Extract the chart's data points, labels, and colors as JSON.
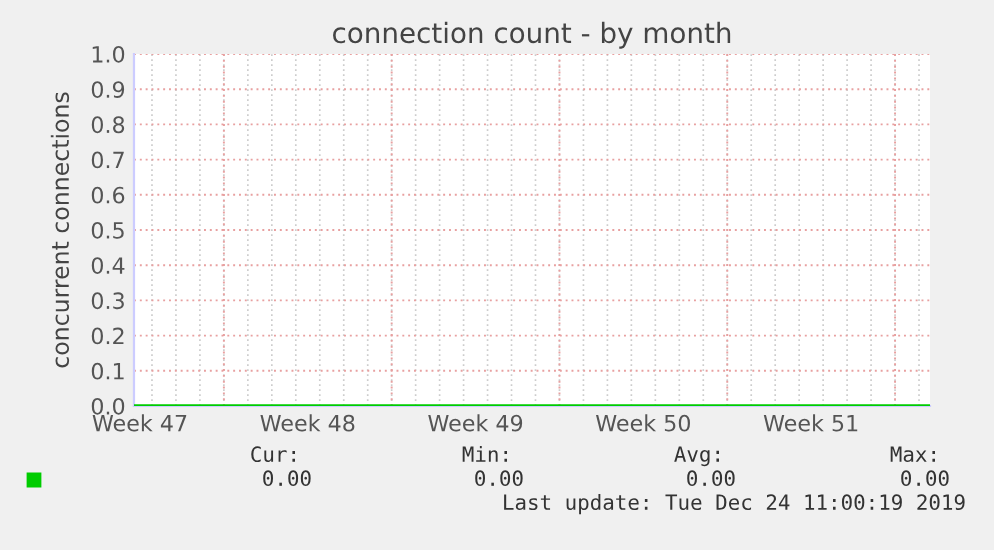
{
  "chart_data": {
    "type": "line",
    "title": "connection count - by month",
    "ylabel": "concurrent connections",
    "x": [
      "2019-11-21T06:00",
      "2019-12-24T11:00"
    ],
    "series": [
      {
        "color": "#00cc00",
        "values": [
          0,
          0
        ]
      }
    ],
    "xlim": [
      "2019-11-21T06:00",
      "2019-12-24T11:00"
    ],
    "xticks": [
      {
        "value": "2019-11-21T12:00",
        "label": "Week 47"
      },
      {
        "value": "2019-11-28T12:00",
        "label": "Week 48"
      },
      {
        "value": "2019-12-05T12:00",
        "label": "Week 49"
      },
      {
        "value": "2019-12-12T12:00",
        "label": "Week 50"
      },
      {
        "value": "2019-12-19T12:00",
        "label": "Week 51"
      },
      {
        "value": "2019-11-25",
        "label": null
      },
      {
        "value": "2019-12-02",
        "label": null
      },
      {
        "value": "2019-12-09",
        "label": null
      },
      {
        "value": "2019-12-16",
        "label": null
      },
      {
        "value": "2019-12-23",
        "label": null
      }
    ],
    "ylim": [
      0,
      1
    ],
    "yticks": [
      {
        "value": 0,
        "label": "0.0"
      },
      {
        "value": 0.1,
        "label": "0.1"
      },
      {
        "value": 0.2,
        "label": "0.2"
      },
      {
        "value": 0.3,
        "label": "0.3"
      },
      {
        "value": 0.4,
        "label": "0.4"
      },
      {
        "value": 0.5,
        "label": "0.5"
      },
      {
        "value": 0.6,
        "label": "0.6"
      },
      {
        "value": 0.7,
        "label": "0.7"
      },
      {
        "value": 0.8,
        "label": "0.8"
      },
      {
        "value": 0.9,
        "label": "0.9"
      },
      {
        "value": 1,
        "label": "1.0"
      }
    ],
    "grid": true,
    "annotations": [
      "Cur:",
      "Min:",
      "Avg:",
      "Max:",
      "0.00",
      "0.00",
      "0.00",
      "0.00",
      "Last update: Tue Dec 24 11:00:19 2019"
    ]
  }
}
